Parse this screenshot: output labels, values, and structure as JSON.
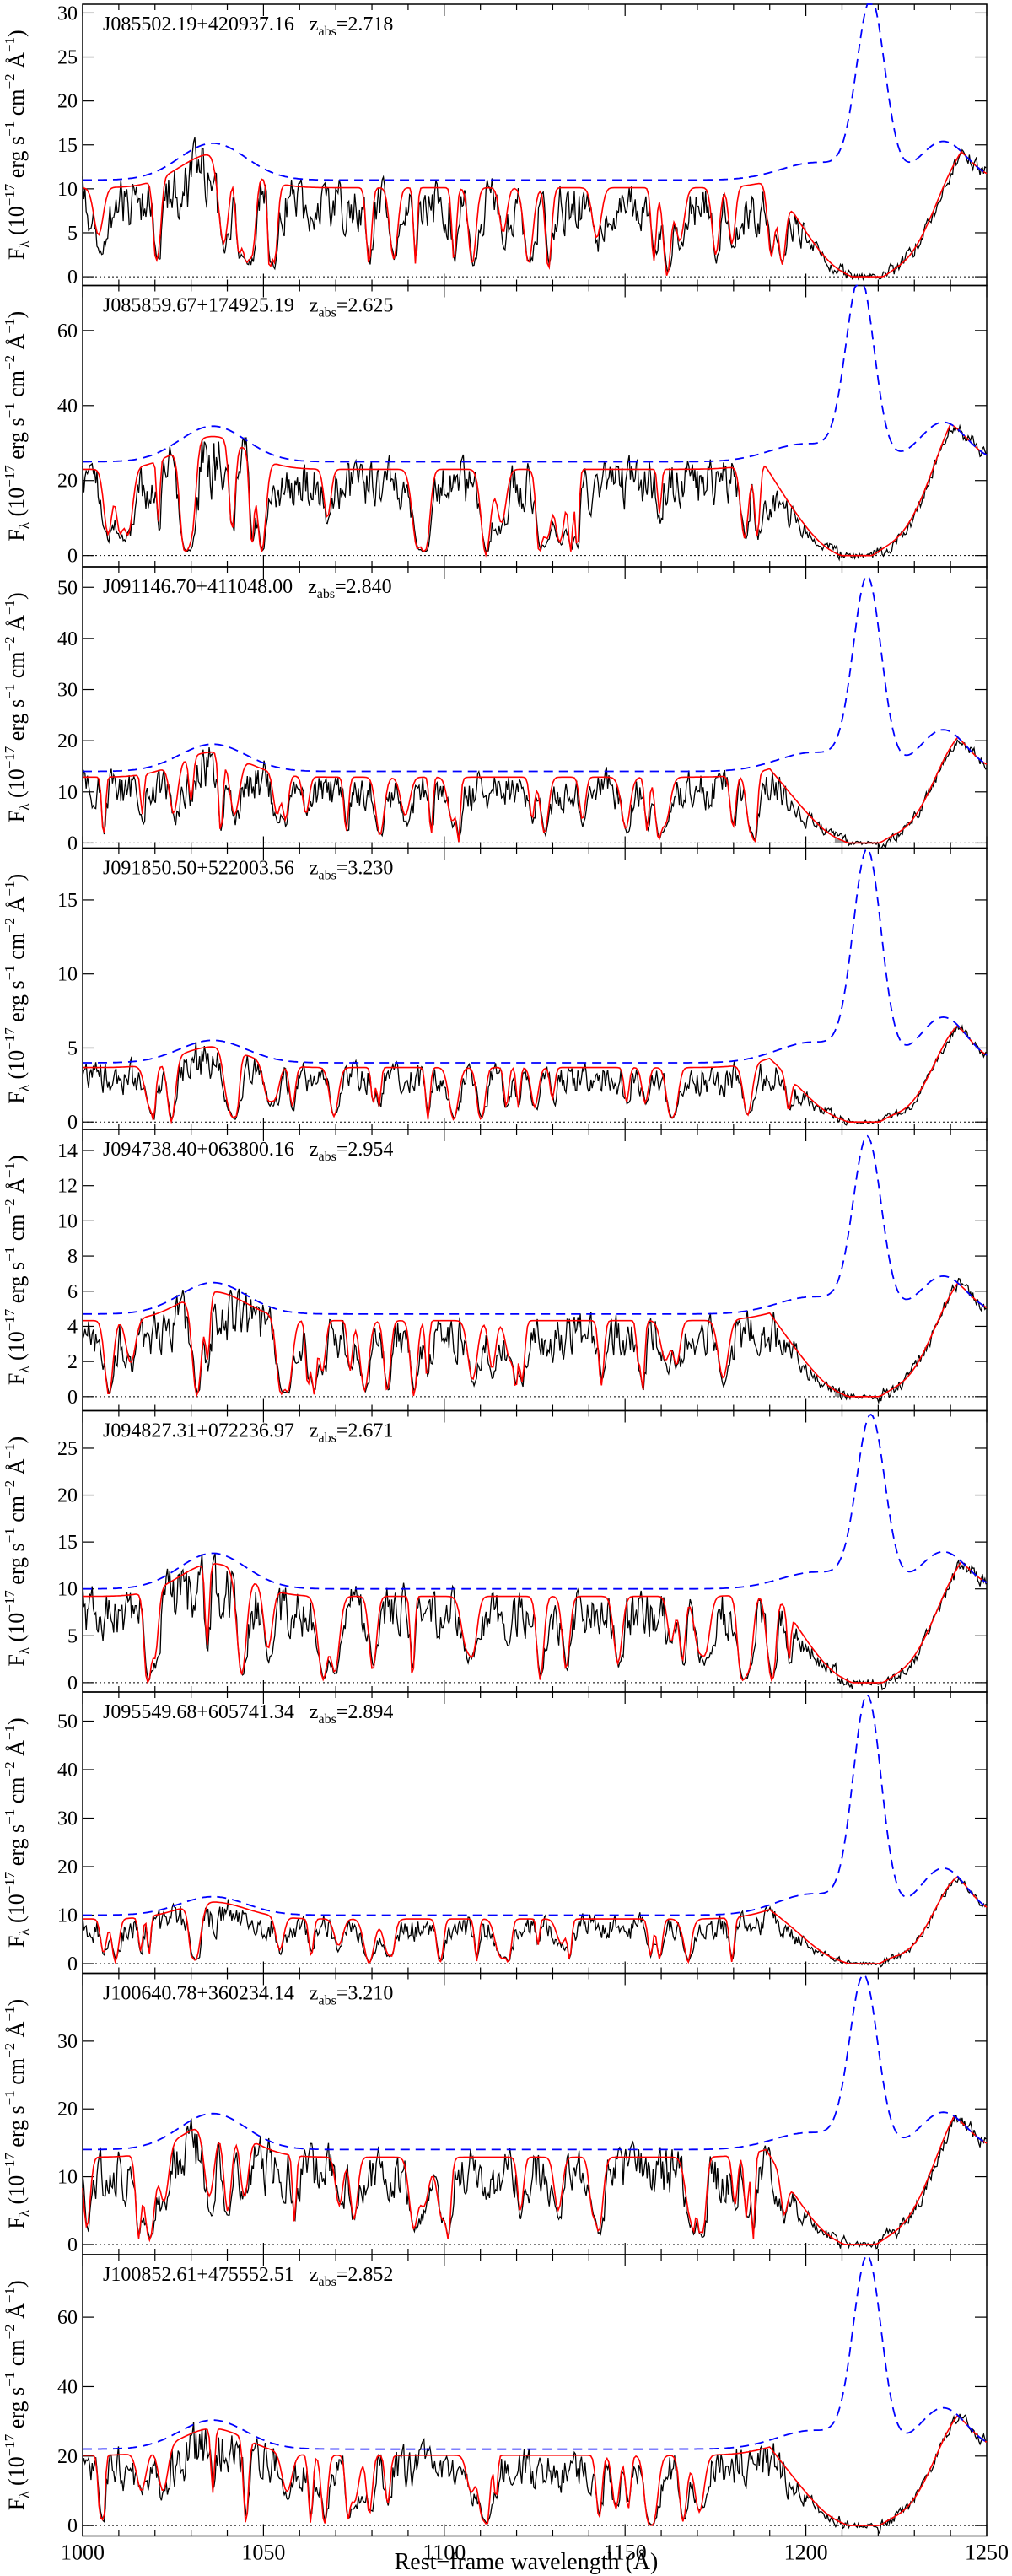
{
  "figure": {
    "x_axis_label": "Rest−frame wavelength (Å)",
    "x_ticks": [
      1000,
      1050,
      1100,
      1150,
      1200,
      1250
    ],
    "x_range": [
      1000,
      1250
    ],
    "y_label_parts": [
      "F",
      "λ",
      " (10",
      "−17",
      " erg s",
      "−1",
      " cm",
      "−2",
      " Å",
      "−1",
      ")"
    ],
    "z_prefix": "z",
    "z_subscript": "abs",
    "colors": {
      "observed": "#000000",
      "model": "#ff0000",
      "continuum": "#0000ff",
      "shade": "#999999"
    }
  },
  "chart_data": [
    {
      "type": "line",
      "name": "J085502.19+420937.16",
      "z_abs": "2.718",
      "ylim": [
        -1,
        31
      ],
      "yticks": [
        0,
        5,
        10,
        15,
        20,
        25,
        30
      ],
      "series": [
        "observed flux",
        "DLA model",
        "unabsorbed continuum"
      ],
      "continuum_level": 11,
      "continuum_peak": 31,
      "dla_center": 1217,
      "shaded": false
    },
    {
      "type": "line",
      "name": "J085859.67+174925.19",
      "z_abs": "2.625",
      "ylim": [
        -3,
        72
      ],
      "yticks": [
        0,
        20,
        40,
        60
      ],
      "series": [
        "observed flux",
        "DLA model",
        "unabsorbed continuum"
      ],
      "continuum_level": 25,
      "continuum_peak": 73,
      "dla_center": 1214,
      "shaded": false
    },
    {
      "type": "line",
      "name": "J091146.70+411048.00",
      "z_abs": "2.840",
      "ylim": [
        -1,
        54
      ],
      "yticks": [
        0,
        10,
        20,
        30,
        40,
        50
      ],
      "series": [
        "observed flux",
        "DLA model",
        "unabsorbed continuum"
      ],
      "continuum_level": 14,
      "continuum_peak": 51,
      "dla_center": 1216,
      "shaded": true
    },
    {
      "type": "line",
      "name": "J091850.50+522003.56",
      "z_abs": "3.230",
      "ylim": [
        -0.5,
        18.5
      ],
      "yticks": [
        0,
        5,
        10,
        15
      ],
      "series": [
        "observed flux",
        "DLA model",
        "unabsorbed continuum"
      ],
      "continuum_level": 4,
      "continuum_peak": 18,
      "dla_center": 1216,
      "shaded": false
    },
    {
      "type": "line",
      "name": "J094738.40+063800.16",
      "z_abs": "2.954",
      "ylim": [
        -0.8,
        15.2
      ],
      "yticks": [
        0,
        2,
        4,
        6,
        8,
        10,
        12,
        14
      ],
      "series": [
        "observed flux",
        "DLA model",
        "unabsorbed continuum"
      ],
      "continuum_level": 4.7,
      "continuum_peak": 14.5,
      "dla_center": 1216,
      "shaded": true
    },
    {
      "type": "line",
      "name": "J094827.31+072236.97",
      "z_abs": "2.671",
      "ylim": [
        -1,
        29
      ],
      "yticks": [
        0,
        5,
        10,
        15,
        20,
        25
      ],
      "series": [
        "observed flux",
        "DLA model",
        "unabsorbed continuum"
      ],
      "continuum_level": 10,
      "continuum_peak": 28,
      "dla_center": 1217,
      "shaded": false
    },
    {
      "type": "line",
      "name": "J095549.68+605741.34",
      "z_abs": "2.894",
      "ylim": [
        -2,
        56
      ],
      "yticks": [
        0,
        10,
        20,
        30,
        40,
        50
      ],
      "series": [
        "observed flux",
        "DLA model",
        "unabsorbed continuum"
      ],
      "continuum_level": 10,
      "continuum_peak": 54,
      "dla_center": 1216,
      "shaded": false
    },
    {
      "type": "line",
      "name": "J100640.78+360234.14",
      "z_abs": "3.210",
      "ylim": [
        -1.5,
        40
      ],
      "yticks": [
        0,
        10,
        20,
        30
      ],
      "series": [
        "observed flux",
        "DLA model",
        "unabsorbed continuum"
      ],
      "continuum_level": 14,
      "continuum_peak": 39,
      "dla_center": 1215,
      "shaded": false
    },
    {
      "type": "line",
      "name": "J100852.61+475552.51",
      "z_abs": "2.852",
      "ylim": [
        -3,
        78
      ],
      "yticks": [
        0,
        20,
        40,
        60
      ],
      "series": [
        "observed flux",
        "DLA model",
        "unabsorbed continuum"
      ],
      "continuum_level": 22,
      "continuum_peak": 76,
      "dla_center": 1216,
      "shaded": false
    }
  ]
}
